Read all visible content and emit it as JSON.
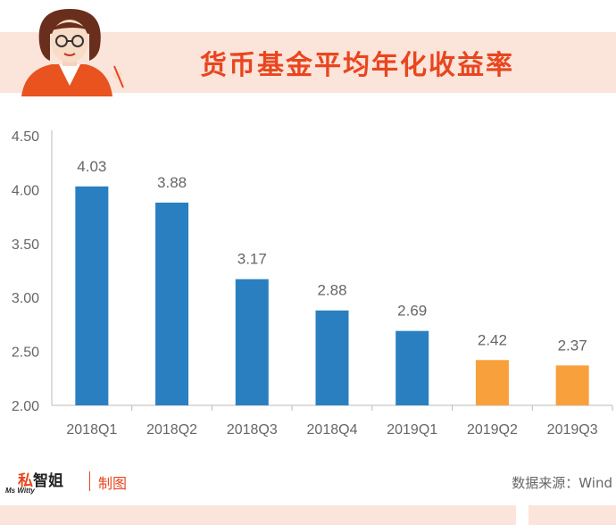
{
  "header": {
    "title": "货币基金平均年化收益率"
  },
  "footer": {
    "logo_text_a": "私",
    "logo_text_b": "智姐",
    "logo_sub": "Ms Witty",
    "made_by": "制图",
    "source": "数据来源：Wind"
  },
  "colors": {
    "banner_bg": "#fbe4da",
    "title": "#e8461f",
    "bar_blue": "#2a7fc1",
    "bar_orange": "#f7a03c"
  },
  "chart_data": {
    "type": "bar",
    "categories": [
      "2018Q1",
      "2018Q2",
      "2018Q3",
      "2018Q4",
      "2019Q1",
      "2019Q2",
      "2019Q3"
    ],
    "values": [
      4.03,
      3.88,
      3.17,
      2.88,
      2.69,
      2.42,
      2.37
    ],
    "value_labels": [
      "4.03",
      "3.88",
      "3.17",
      "2.88",
      "2.69",
      "2.42",
      "2.37"
    ],
    "bar_colors": [
      "#2a7fc1",
      "#2a7fc1",
      "#2a7fc1",
      "#2a7fc1",
      "#2a7fc1",
      "#f7a03c",
      "#f7a03c"
    ],
    "ylim": [
      2.0,
      4.5
    ],
    "yticks": [
      2.0,
      2.5,
      3.0,
      3.5,
      4.0,
      4.5
    ],
    "ytick_labels": [
      "2.00",
      "2.50",
      "3.00",
      "3.50",
      "4.00",
      "4.50"
    ],
    "grid": false,
    "xlabel": "",
    "ylabel": "",
    "title": "货币基金平均年化收益率"
  }
}
